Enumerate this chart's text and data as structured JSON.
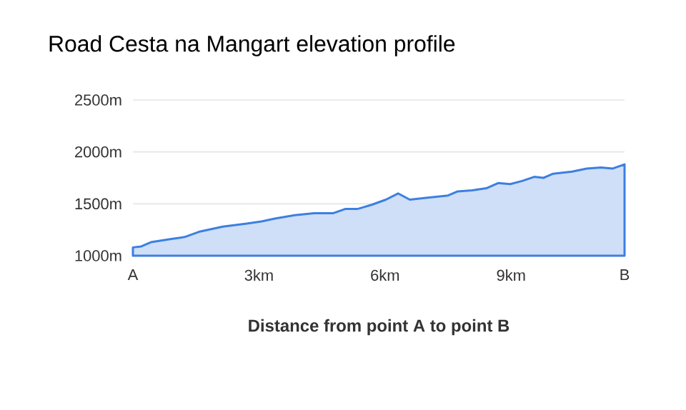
{
  "chart_data": {
    "type": "area",
    "title": "Road Cesta na Mangart elevation profile",
    "xlabel": "Distance from point A to point B",
    "x": [
      0,
      0.2,
      0.43,
      0.89,
      1.23,
      1.57,
      2.14,
      2.71,
      3.06,
      3.4,
      3.85,
      4.31,
      4.77,
      5.05,
      5.34,
      5.68,
      6.02,
      6.31,
      6.59,
      7.05,
      7.5,
      7.73,
      8.07,
      8.41,
      8.69,
      8.98,
      9.26,
      9.55,
      9.77,
      10.0,
      10.45,
      10.8,
      11.14,
      11.42,
      11.7
    ],
    "series": [
      {
        "color": "#3d7fe0",
        "values": [
          1080,
          1090,
          1130,
          1160,
          1180,
          1230,
          1280,
          1310,
          1330,
          1360,
          1390,
          1410,
          1410,
          1450,
          1450,
          1490,
          1540,
          1600,
          1540,
          1560,
          1580,
          1620,
          1630,
          1650,
          1700,
          1690,
          1720,
          1760,
          1750,
          1790,
          1810,
          1840,
          1850,
          1840,
          1880
        ]
      }
    ],
    "xlim": [
      0,
      11.7
    ],
    "ylim": [
      1000,
      2500
    ],
    "xticks": [
      {
        "value": 0,
        "label": "A"
      },
      {
        "value": 3,
        "label": "3km"
      },
      {
        "value": 6,
        "label": "6km"
      },
      {
        "value": 9,
        "label": "9km"
      },
      {
        "value": 11.7,
        "label": "B"
      }
    ],
    "yticks": [
      {
        "value": 1000,
        "label": "1000m"
      },
      {
        "value": 1500,
        "label": "1500m"
      },
      {
        "value": 2000,
        "label": "2000m"
      },
      {
        "value": 2500,
        "label": "2500m"
      }
    ],
    "grid": "y",
    "marker": "none"
  }
}
